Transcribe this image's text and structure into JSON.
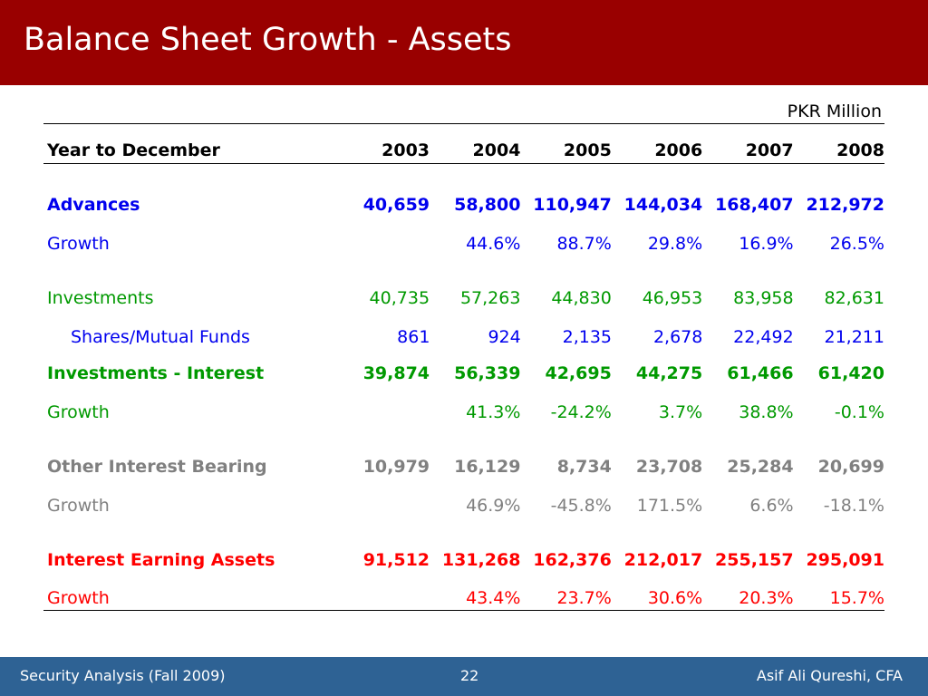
{
  "title": "Balance Sheet Growth - Assets",
  "unit_note": "PKR Million",
  "header": {
    "label": "Year to December",
    "years": [
      "2003",
      "2004",
      "2005",
      "2006",
      "2007",
      "2008"
    ]
  },
  "colors": {
    "title_bar": "#990000",
    "footer_bar": "#2e6294",
    "blue": "#0000ee",
    "green": "#009900",
    "gray": "#808080",
    "red": "#ff0000"
  },
  "rows": [
    {
      "label": "Advances",
      "values": [
        "40,659",
        "58,800",
        "110,947",
        "144,034",
        "168,407",
        "212,972"
      ],
      "color": "#0000ee",
      "bold": true
    },
    {
      "label": "Growth",
      "values": [
        "",
        "44.6%",
        "88.7%",
        "29.8%",
        "16.9%",
        "26.5%"
      ],
      "color": "#0000ee",
      "bold": false
    },
    {
      "label": "Investments",
      "values": [
        "40,735",
        "57,263",
        "44,830",
        "46,953",
        "83,958",
        "82,631"
      ],
      "color": "#009900",
      "bold": false
    },
    {
      "label": "Shares/Mutual Funds",
      "values": [
        "861",
        "924",
        "2,135",
        "2,678",
        "22,492",
        "21,211"
      ],
      "color": "#0000ee",
      "bold": false,
      "indent": true
    },
    {
      "label": "Investments - Interest",
      "values": [
        "39,874",
        "56,339",
        "42,695",
        "44,275",
        "61,466",
        "61,420"
      ],
      "color": "#009900",
      "bold": true
    },
    {
      "label": "Growth",
      "values": [
        "",
        "41.3%",
        "-24.2%",
        "3.7%",
        "38.8%",
        "-0.1%"
      ],
      "color": "#009900",
      "bold": false
    },
    {
      "label": "Other Interest Bearing",
      "values": [
        "10,979",
        "16,129",
        "8,734",
        "23,708",
        "25,284",
        "20,699"
      ],
      "color": "#808080",
      "bold": true
    },
    {
      "label": "Growth",
      "values": [
        "",
        "46.9%",
        "-45.8%",
        "171.5%",
        "6.6%",
        "-18.1%"
      ],
      "color": "#808080",
      "bold": false
    },
    {
      "label": "Interest Earning Assets",
      "values": [
        "91,512",
        "131,268",
        "162,376",
        "212,017",
        "255,157",
        "295,091"
      ],
      "color": "#ff0000",
      "bold": true
    },
    {
      "label": "Growth",
      "values": [
        "",
        "43.4%",
        "23.7%",
        "30.6%",
        "20.3%",
        "15.7%"
      ],
      "color": "#ff0000",
      "bold": false
    }
  ],
  "footer": {
    "left": "Security Analysis (Fall 2009)",
    "page": "22",
    "right": "Asif Ali Qureshi, CFA"
  }
}
